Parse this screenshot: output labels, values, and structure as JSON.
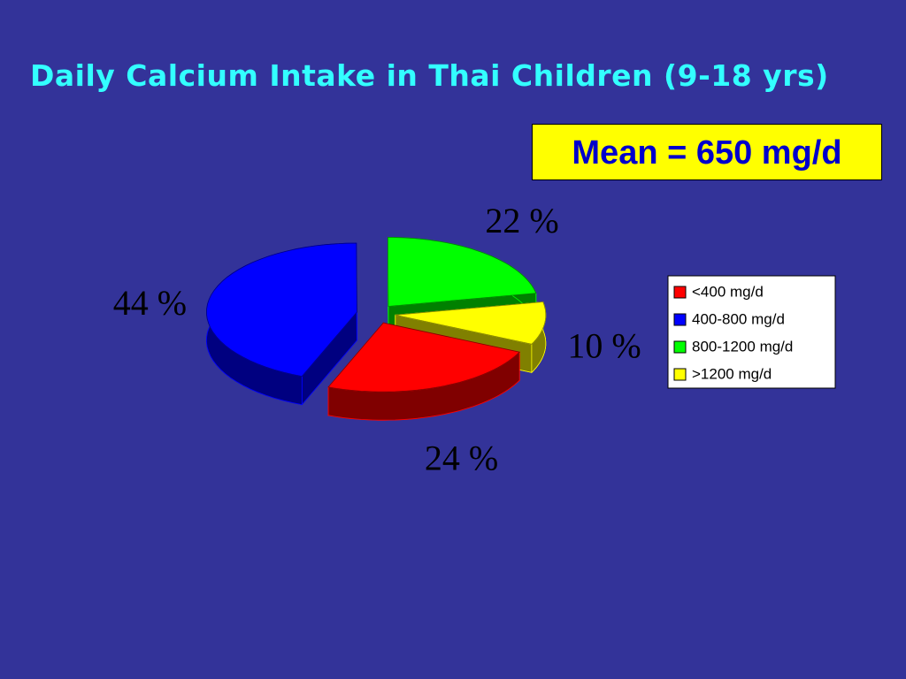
{
  "chart_data": {
    "type": "pie",
    "title": "Daily Calcium Intake in Thai Children (9-18 yrs)",
    "annotation": "Mean =  650 mg/d",
    "categories": [
      "<400 mg/d",
      "400-800 mg/d",
      "800-1200 mg/d",
      ">1200 mg/d"
    ],
    "values": [
      24,
      44,
      22,
      10
    ],
    "value_labels": [
      "24 %",
      "44 %",
      "22 %",
      "10 %"
    ],
    "colors": [
      "#ff0000",
      "#0000ff",
      "#00ff00",
      "#ffff00"
    ],
    "legend": "right"
  }
}
